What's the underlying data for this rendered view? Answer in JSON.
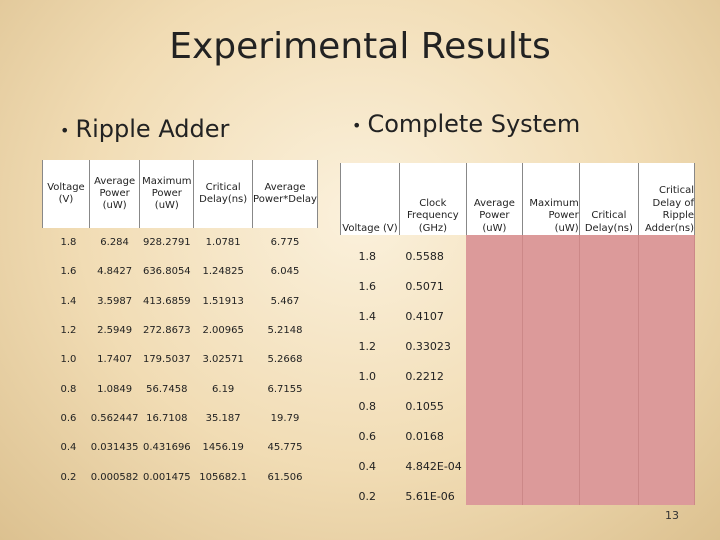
{
  "title": "Experimental Results",
  "ripple": {
    "heading": "Ripple Adder",
    "headers": [
      "Voltage (V)",
      "Average Power (uW)",
      "Maximum Power (uW)",
      "Critical Delay(ns)",
      "Average Power*Delay"
    ],
    "rows": [
      [
        "1.8",
        "6.284",
        "928.2791",
        "1.0781",
        "6.775"
      ],
      [
        "1.6",
        "4.8427",
        "636.8054",
        "1.24825",
        "6.045"
      ],
      [
        "1.4",
        "3.5987",
        "413.6859",
        "1.51913",
        "5.467"
      ],
      [
        "1.2",
        "2.5949",
        "272.8673",
        "2.00965",
        "5.2148"
      ],
      [
        "1.0",
        "1.7407",
        "179.5037",
        "3.02571",
        "5.2668"
      ],
      [
        "0.8",
        "1.0849",
        "56.7458",
        "6.19",
        "6.7155"
      ],
      [
        "0.6",
        "0.562447",
        "16.7108",
        "35.187",
        "19.79"
      ],
      [
        "0.4",
        "0.031435",
        "0.431696",
        "1456.19",
        "45.775"
      ],
      [
        "0.2",
        "0.000582",
        "0.001475",
        "105682.1",
        "61.506"
      ]
    ]
  },
  "system": {
    "heading": "Complete System",
    "headers": [
      "Voltage (V)",
      "Clock Frequency (GHz)",
      "Average Power (uW)",
      "Maximum Power (uW)",
      "Critical Delay(ns)",
      "Critical Delay of Ripple Adder(ns)"
    ],
    "rows": [
      [
        "1.8",
        "0.5588"
      ],
      [
        "1.6",
        "0.5071"
      ],
      [
        "1.4",
        "0.4107"
      ],
      [
        "1.2",
        "0.33023"
      ],
      [
        "1.0",
        "0.2212"
      ],
      [
        "0.8",
        "0.1055"
      ],
      [
        "0.6",
        "0.0168"
      ],
      [
        "0.4",
        "4.842E-04"
      ],
      [
        "0.2",
        "5.61E-06"
      ]
    ],
    "fill_color": "#dc9a9a"
  },
  "page_number": "13"
}
